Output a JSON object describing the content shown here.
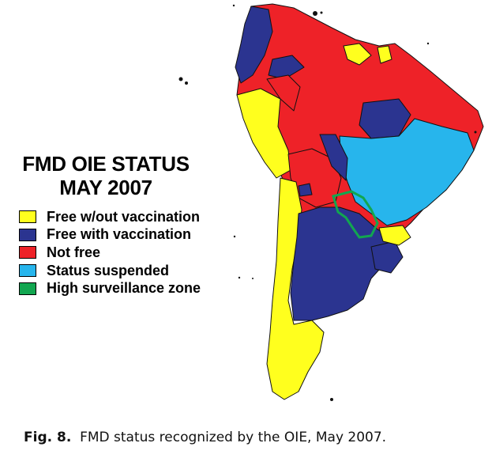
{
  "title": {
    "line1": "FMD OIE STATUS",
    "line2": "MAY 2007"
  },
  "legend": [
    {
      "label": "Free w/out vaccination",
      "color": "#ffff1e"
    },
    {
      "label": "Free with vaccination",
      "color": "#2b3490"
    },
    {
      "label": "Not free",
      "color": "#ee2228"
    },
    {
      "label": "Status suspended",
      "color": "#27b5ec"
    },
    {
      "label": "High surveillance zone",
      "color": "#12a650"
    }
  ],
  "caption": {
    "prefix": "Fig. 8.",
    "text": "FMD  status recognized by the OIE, May 2007."
  },
  "colors": {
    "free_without": "#ffff1e",
    "free_with": "#2b3490",
    "not_free": "#ee2228",
    "suspended": "#27b5ec",
    "surveillance": "#12a650",
    "border": "#111111"
  }
}
